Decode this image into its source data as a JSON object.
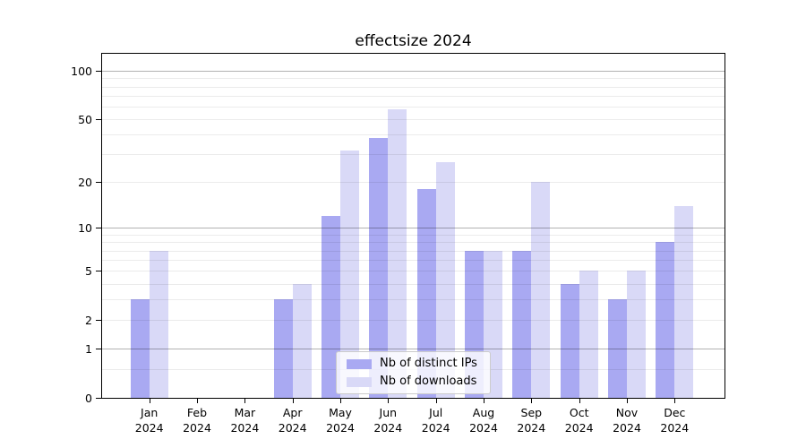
{
  "title": "effectsize 2024",
  "chart_data": {
    "type": "bar",
    "title": "effectsize 2024",
    "categories": [
      "Jan",
      "Feb",
      "Mar",
      "Apr",
      "May",
      "Jun",
      "Jul",
      "Aug",
      "Sep",
      "Oct",
      "Nov",
      "Dec"
    ],
    "x_year_label": "2024",
    "series": [
      {
        "name": "Nb of distinct IPs",
        "color": "#a9a9f2",
        "values": [
          3,
          0,
          0,
          3,
          12,
          38,
          18,
          7,
          7,
          4,
          3,
          8
        ]
      },
      {
        "name": "Nb of downloads",
        "color": "#d9d9f7",
        "values": [
          7,
          0,
          0,
          4,
          32,
          58,
          27,
          7,
          20,
          5,
          5,
          14
        ]
      }
    ],
    "yscale": "log1p",
    "ylim": [
      0,
      128
    ],
    "grid": true,
    "legend_position": "lower center",
    "y_tick_values": [
      0,
      1,
      2,
      5,
      10,
      20,
      50,
      100
    ],
    "y_tick_labels": [
      "0",
      "1",
      "2",
      "5",
      "10",
      "20",
      "50",
      "100"
    ],
    "y_major_gridlines": [
      1,
      10,
      100
    ],
    "y_minor_gridlines": [
      0.5,
      2,
      3,
      4,
      5,
      6,
      7,
      8,
      9,
      20,
      30,
      40,
      50,
      60,
      70,
      80,
      90
    ],
    "colors": {
      "axis": "#000000",
      "major_grid": "rgba(0,0,0,0.30)",
      "minor_grid": "rgba(0,0,0,0.08)",
      "legend_border": "#cccccc",
      "legend_background": "rgba(255,255,255,0.8)"
    }
  }
}
